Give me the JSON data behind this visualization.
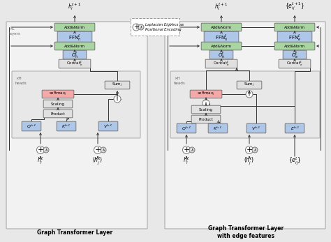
{
  "bg_color": "#e8e8e8",
  "panel_bg": "#f2f2f2",
  "inner_bg": "#e8e8e8",
  "box_colors": {
    "add_norm": "#a8d5a2",
    "ffn": "#aec6e8",
    "attn_out": "#aec6e8",
    "concat": "#e0e0e0",
    "softmax": "#f4a9a8",
    "scaling": "#e0e0e0",
    "product": "#e0e0e0",
    "qkv": "#aec6e8",
    "edge": "#aec6e8",
    "sum": "#e0e0e0"
  },
  "edge_color": "#555555",
  "title1": "Graph Transformer Layer",
  "title2": "Graph Transformer Layer\nwith edge features",
  "legend_text": "Laplacian EigVecs as\nPositional Encoding"
}
